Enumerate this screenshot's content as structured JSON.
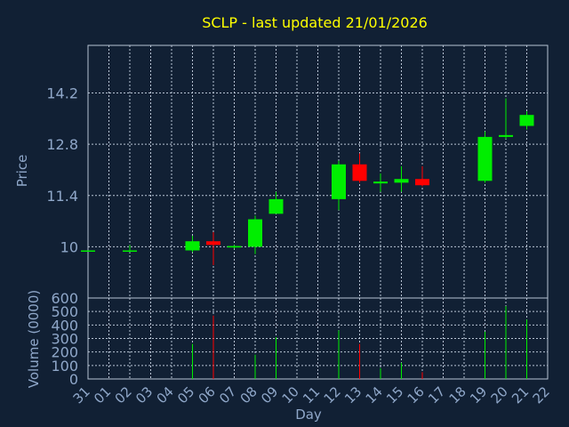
{
  "colors": {
    "background": "#112034",
    "up": "#00ee00",
    "down": "#ff0000",
    "axis_text": "#8fa7c9",
    "title": "#ffff00",
    "grid": "#b8c4d4"
  },
  "chart_data": {
    "type": "candlestick",
    "title": "SCLP - last updated 21/01/2026",
    "price_axis": {
      "label": "Price",
      "ylim": [
        8.6,
        15.5
      ],
      "ticks": [
        "10",
        "11.4",
        "12.8",
        "14.2"
      ]
    },
    "volume_axis": {
      "label": "Volume (0000)",
      "ylim": [
        0,
        600
      ],
      "ticks": [
        "0",
        "100",
        "200",
        "300",
        "400",
        "500",
        "600"
      ]
    },
    "xlabel": "Day",
    "x_ticks": [
      "31",
      "01",
      "02",
      "03",
      "04",
      "05",
      "06",
      "07",
      "08",
      "09",
      "10",
      "11",
      "12",
      "13",
      "14",
      "15",
      "16",
      "17",
      "18",
      "19",
      "20",
      "21",
      "22"
    ],
    "grid": true,
    "candles": [
      {
        "day": "31",
        "open": 9.9,
        "high": 9.9,
        "low": 9.9,
        "close": 9.9,
        "volume": 0
      },
      {
        "day": "02",
        "open": 9.9,
        "high": 10.05,
        "low": 9.85,
        "close": 9.9,
        "volume": 0
      },
      {
        "day": "05",
        "open": 9.9,
        "high": 10.3,
        "low": 9.85,
        "close": 10.15,
        "volume": 260
      },
      {
        "day": "06",
        "open": 10.15,
        "high": 10.4,
        "low": 9.5,
        "close": 10.05,
        "volume": 470
      },
      {
        "day": "07",
        "open": 9.98,
        "high": 10.05,
        "low": 9.95,
        "close": 10.02,
        "volume": 0
      },
      {
        "day": "08",
        "open": 10.0,
        "high": 10.85,
        "low": 9.8,
        "close": 10.75,
        "volume": 180
      },
      {
        "day": "09",
        "open": 10.9,
        "high": 11.5,
        "low": 10.9,
        "close": 11.3,
        "volume": 310
      },
      {
        "day": "12",
        "open": 11.3,
        "high": 12.35,
        "low": 11.0,
        "close": 12.25,
        "volume": 360
      },
      {
        "day": "13",
        "open": 12.25,
        "high": 12.55,
        "low": 11.75,
        "close": 11.8,
        "volume": 260
      },
      {
        "day": "14",
        "open": 11.73,
        "high": 12.0,
        "low": 11.5,
        "close": 11.78,
        "volume": 80
      },
      {
        "day": "15",
        "open": 11.75,
        "high": 12.2,
        "low": 11.5,
        "close": 11.85,
        "volume": 120
      },
      {
        "day": "16",
        "open": 11.85,
        "high": 12.2,
        "low": 11.65,
        "close": 11.68,
        "volume": 50
      },
      {
        "day": "19",
        "open": 11.8,
        "high": 13.15,
        "low": 11.75,
        "close": 13.0,
        "volume": 350
      },
      {
        "day": "20",
        "open": 13.0,
        "high": 14.05,
        "low": 12.95,
        "close": 13.05,
        "volume": 540
      },
      {
        "day": "21",
        "open": 13.3,
        "high": 13.7,
        "low": 13.2,
        "close": 13.6,
        "volume": 440
      }
    ]
  }
}
